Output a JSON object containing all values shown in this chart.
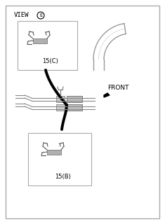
{
  "bg_color": "#f0f0f0",
  "border_color": "#aaaaaa",
  "box1_label": "15(C)",
  "box2_label": "15(B)",
  "front_label": "FRONT",
  "fig_width": 2.35,
  "fig_height": 3.2,
  "dpi": 100
}
